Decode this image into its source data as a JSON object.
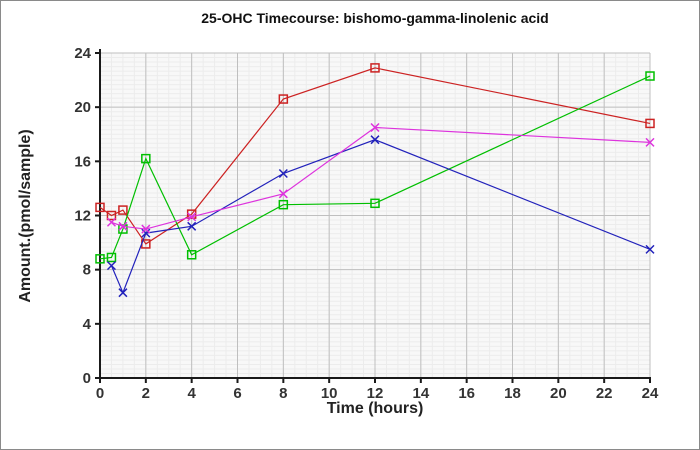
{
  "figure": {
    "background": "#ffffff",
    "border_color": "#8a8a8a",
    "plot_background": "#f8f8f8",
    "major_grid_color": "#bfbfbf",
    "minor_grid_color": "#ececec",
    "axis_color": "#1a1a1a",
    "tick_label_color": "#333333"
  },
  "chart_data": {
    "type": "line",
    "title": "25-OHC Timecourse: bishomo-gamma-linolenic acid",
    "xlabel": "Time (hours)",
    "ylabel": "Amount.(pmol/sample)",
    "xlim": [
      0,
      24
    ],
    "ylim": [
      0,
      24
    ],
    "x_ticks": [
      0,
      2,
      4,
      6,
      8,
      10,
      12,
      14,
      16,
      18,
      20,
      22,
      24
    ],
    "y_ticks": [
      0,
      4,
      8,
      12,
      16,
      20,
      24
    ],
    "x_minor_step": 0.5,
    "y_minor_step": 0.3333,
    "grid": "major and minor gridlines, no top/right frame",
    "legend_position": "none",
    "series": [
      {
        "name": "red-open-squares",
        "color": "#cc2222",
        "marker": "square",
        "x": [
          0,
          0.5,
          1,
          2,
          4,
          8,
          12,
          24
        ],
        "y": [
          12.6,
          12.0,
          12.4,
          9.9,
          12.1,
          20.6,
          22.9,
          18.8
        ]
      },
      {
        "name": "green-open-squares",
        "color": "#00bf00",
        "marker": "square",
        "x": [
          0,
          0.5,
          1,
          2,
          4,
          8,
          12,
          24
        ],
        "y": [
          8.8,
          8.9,
          11.0,
          16.2,
          9.1,
          12.8,
          12.9,
          22.3
        ]
      },
      {
        "name": "blue-x-marks",
        "color": "#2222bb",
        "marker": "x",
        "x": [
          0.5,
          1,
          2,
          4,
          8,
          12,
          24
        ],
        "y": [
          8.3,
          6.3,
          10.7,
          11.2,
          15.1,
          17.6,
          9.5
        ]
      },
      {
        "name": "magenta-x-marks",
        "color": "#dd33dd",
        "marker": "x",
        "x": [
          0.5,
          1,
          2,
          4,
          8,
          12,
          24
        ],
        "y": [
          11.5,
          11.2,
          11.0,
          11.9,
          13.6,
          18.5,
          17.4
        ]
      }
    ]
  }
}
